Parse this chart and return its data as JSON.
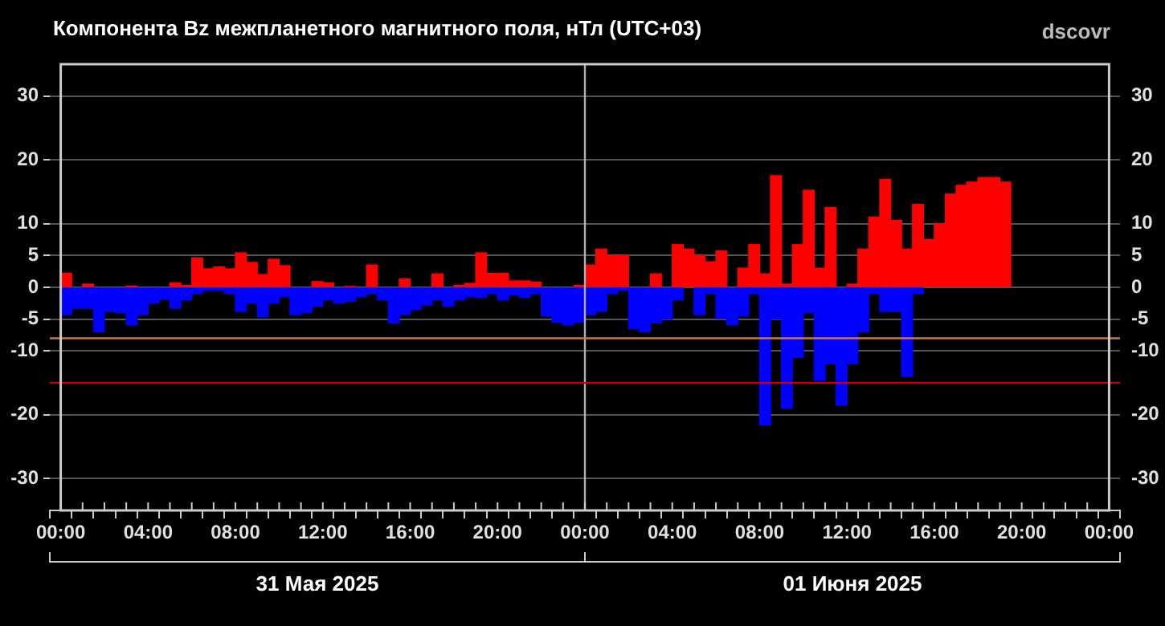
{
  "chart_data": {
    "type": "bar",
    "title": "Компонента Bz межпланетного магнитного поля, нТл (UTC+03)",
    "subtitle": "dscovr",
    "annotations": [
      "31 Мая 2025",
      "01 Июня 2025"
    ],
    "x": [
      "2025-05-31T00:15",
      "2025-05-31T00:45",
      "2025-05-31T01:15",
      "2025-05-31T01:45",
      "2025-05-31T02:15",
      "2025-05-31T02:45",
      "2025-05-31T03:15",
      "2025-05-31T03:45",
      "2025-05-31T04:15",
      "2025-05-31T04:45",
      "2025-05-31T05:15",
      "2025-05-31T05:45",
      "2025-05-31T06:15",
      "2025-05-31T06:45",
      "2025-05-31T07:15",
      "2025-05-31T07:45",
      "2025-05-31T08:15",
      "2025-05-31T08:45",
      "2025-05-31T09:15",
      "2025-05-31T09:45",
      "2025-05-31T10:15",
      "2025-05-31T10:45",
      "2025-05-31T11:15",
      "2025-05-31T11:45",
      "2025-05-31T12:15",
      "2025-05-31T12:45",
      "2025-05-31T13:15",
      "2025-05-31T13:45",
      "2025-05-31T14:15",
      "2025-05-31T14:45",
      "2025-05-31T15:15",
      "2025-05-31T15:45",
      "2025-05-31T16:15",
      "2025-05-31T16:45",
      "2025-05-31T17:15",
      "2025-05-31T17:45",
      "2025-05-31T18:15",
      "2025-05-31T18:45",
      "2025-05-31T19:15",
      "2025-05-31T19:45",
      "2025-05-31T20:15",
      "2025-05-31T20:45",
      "2025-05-31T21:15",
      "2025-05-31T21:45",
      "2025-05-31T22:15",
      "2025-05-31T22:45",
      "2025-05-31T23:15",
      "2025-05-31T23:45",
      "2025-06-01T00:15",
      "2025-06-01T00:45",
      "2025-06-01T01:15",
      "2025-06-01T01:45",
      "2025-06-01T02:15",
      "2025-06-01T02:45",
      "2025-06-01T03:15",
      "2025-06-01T03:45",
      "2025-06-01T04:15",
      "2025-06-01T04:45",
      "2025-06-01T05:15",
      "2025-06-01T05:45",
      "2025-06-01T06:15",
      "2025-06-01T06:45",
      "2025-06-01T07:15",
      "2025-06-01T07:45",
      "2025-06-01T08:15",
      "2025-06-01T08:45",
      "2025-06-01T09:15",
      "2025-06-01T09:45",
      "2025-06-01T10:15",
      "2025-06-01T10:45",
      "2025-06-01T11:15",
      "2025-06-01T11:45",
      "2025-06-01T12:15",
      "2025-06-01T12:45",
      "2025-06-01T13:15",
      "2025-06-01T13:45",
      "2025-06-01T14:15",
      "2025-06-01T14:45",
      "2025-06-01T15:15",
      "2025-06-01T15:45",
      "2025-06-01T16:15",
      "2025-06-01T16:45",
      "2025-06-01T17:15",
      "2025-06-01T17:45",
      "2025-06-01T18:15",
      "2025-06-01T18:45",
      "2025-06-01T19:15"
    ],
    "series": [
      {
        "color": "#ff0000",
        "values": [
          2.2,
          null,
          0.5,
          null,
          null,
          null,
          0.2,
          null,
          null,
          null,
          0.7,
          0.3,
          4.6,
          2.9,
          3.2,
          2.9,
          5.4,
          3.9,
          2.0,
          4.4,
          3.4,
          null,
          null,
          0.9,
          0.7,
          null,
          0.1,
          null,
          3.5,
          null,
          null,
          1.3,
          null,
          null,
          2.1,
          null,
          0.3,
          0.6,
          5.4,
          2.2,
          2.2,
          1.0,
          1.0,
          0.8,
          null,
          null,
          null,
          0.3,
          3.5,
          6.0,
          5.0,
          5.0,
          null,
          null,
          2.1,
          null,
          6.7,
          6.0,
          5.0,
          4.0,
          5.7,
          null,
          3.0,
          6.7,
          2.1,
          17.5,
          0.5,
          6.7,
          15.2,
          3.0,
          12.5,
          null,
          0.5,
          6.0,
          11.0,
          16.9,
          10.5,
          6.0,
          13,
          7.5,
          10,
          14.6,
          16.0,
          16.5,
          17.2,
          17.2,
          16.5
        ]
      },
      {
        "color": "#0000ff",
        "values": [
          -4.3,
          -3.3,
          -3.3,
          -7.0,
          -3.8,
          -4.0,
          -5.9,
          -4.3,
          -2.5,
          -1.9,
          -3.3,
          -2.0,
          -1.0,
          -0.5,
          -0.5,
          -1.0,
          -3.8,
          -2.5,
          -4.6,
          -2.5,
          -1.5,
          -4.3,
          -4.0,
          -3.0,
          -2.0,
          -2.5,
          -2.2,
          -1.5,
          -1.0,
          -2.0,
          -5.6,
          -4.3,
          -3.5,
          -2.8,
          -2.0,
          -3.0,
          -2.0,
          -1.5,
          -1.6,
          -1.0,
          -2.0,
          -1.2,
          -1.6,
          -1.0,
          -4.5,
          -5.5,
          -5.9,
          -5.5,
          -4.3,
          -3.8,
          -1.0,
          -0.5,
          -6.5,
          -7.0,
          -5.6,
          -5.0,
          -2.0,
          null,
          -4.3,
          -1.0,
          -4.9,
          -5.9,
          -4.5,
          -1.0,
          -21.6,
          -5.0,
          -19,
          -11,
          -4.0,
          -14.6,
          -12,
          -18.5,
          -12,
          -7.0,
          -1.0,
          -3.8,
          -3.8,
          -14,
          -1.0,
          null,
          null,
          null,
          null,
          null,
          null,
          null,
          null
        ]
      }
    ],
    "stacked": true,
    "xlim": [
      "2025-05-31T00:00",
      "2025-06-02T00:00"
    ],
    "xticks": [
      {
        "value": "2025-05-31T00:00",
        "label": "00:00"
      },
      {
        "value": "2025-05-31T01:00",
        "label": null
      },
      {
        "value": "2025-05-31T02:00",
        "label": null
      },
      {
        "value": "2025-05-31T03:00",
        "label": null
      },
      {
        "value": "2025-05-31T04:00",
        "label": "04:00"
      },
      {
        "value": "2025-05-31T05:00",
        "label": null
      },
      {
        "value": "2025-05-31T06:00",
        "label": null
      },
      {
        "value": "2025-05-31T07:00",
        "label": null
      },
      {
        "value": "2025-05-31T08:00",
        "label": "08:00"
      },
      {
        "value": "2025-05-31T09:00",
        "label": null
      },
      {
        "value": "2025-05-31T10:00",
        "label": null
      },
      {
        "value": "2025-05-31T11:00",
        "label": null
      },
      {
        "value": "2025-05-31T12:00",
        "label": "12:00"
      },
      {
        "value": "2025-05-31T13:00",
        "label": null
      },
      {
        "value": "2025-05-31T14:00",
        "label": null
      },
      {
        "value": "2025-05-31T15:00",
        "label": null
      },
      {
        "value": "2025-05-31T16:00",
        "label": "16:00"
      },
      {
        "value": "2025-05-31T17:00",
        "label": null
      },
      {
        "value": "2025-05-31T18:00",
        "label": null
      },
      {
        "value": "2025-05-31T19:00",
        "label": null
      },
      {
        "value": "2025-05-31T20:00",
        "label": "20:00"
      },
      {
        "value": "2025-05-31T21:00",
        "label": null
      },
      {
        "value": "2025-05-31T22:00",
        "label": null
      },
      {
        "value": "2025-05-31T23:00",
        "label": null
      },
      {
        "value": "2025-06-01T00:00",
        "label": "00:00"
      },
      {
        "value": "2025-06-01T01:00",
        "label": null
      },
      {
        "value": "2025-06-01T02:00",
        "label": null
      },
      {
        "value": "2025-06-01T03:00",
        "label": null
      },
      {
        "value": "2025-06-01T04:00",
        "label": "04:00"
      },
      {
        "value": "2025-06-01T05:00",
        "label": null
      },
      {
        "value": "2025-06-01T06:00",
        "label": null
      },
      {
        "value": "2025-06-01T07:00",
        "label": null
      },
      {
        "value": "2025-06-01T08:00",
        "label": "08:00"
      },
      {
        "value": "2025-06-01T09:00",
        "label": null
      },
      {
        "value": "2025-06-01T10:00",
        "label": null
      },
      {
        "value": "2025-06-01T11:00",
        "label": null
      },
      {
        "value": "2025-06-01T12:00",
        "label": "12:00"
      },
      {
        "value": "2025-06-01T13:00",
        "label": null
      },
      {
        "value": "2025-06-01T14:00",
        "label": null
      },
      {
        "value": "2025-06-01T15:00",
        "label": null
      },
      {
        "value": "2025-06-01T16:00",
        "label": "16:00"
      },
      {
        "value": "2025-06-01T17:00",
        "label": null
      },
      {
        "value": "2025-06-01T18:00",
        "label": null
      },
      {
        "value": "2025-06-01T19:00",
        "label": null
      },
      {
        "value": "2025-06-01T20:00",
        "label": "20:00"
      },
      {
        "value": "2025-06-01T21:00",
        "label": null
      },
      {
        "value": "2025-06-01T22:00",
        "label": null
      },
      {
        "value": "2025-06-01T23:00",
        "label": null
      },
      {
        "value": "2025-06-02T00:00",
        "label": "00:00"
      }
    ],
    "ylim": [
      -35,
      35
    ],
    "yticks": [
      -30,
      -20,
      -10,
      -5,
      0,
      5,
      10,
      20,
      30
    ],
    "y2lim": [
      -35,
      35
    ],
    "y2ticks": [
      -30,
      -20,
      -10,
      -5,
      0,
      5,
      10,
      20,
      30
    ],
    "ref_lines": [
      {
        "axis": "x",
        "value": "2025-06-01T00:00",
        "color": "#b0b0b0"
      },
      {
        "axis": "y",
        "value": -8,
        "color": "#c8783c"
      },
      {
        "axis": "y",
        "value": -15,
        "color": "#cc0000"
      }
    ],
    "grid": "y",
    "legend": false
  }
}
